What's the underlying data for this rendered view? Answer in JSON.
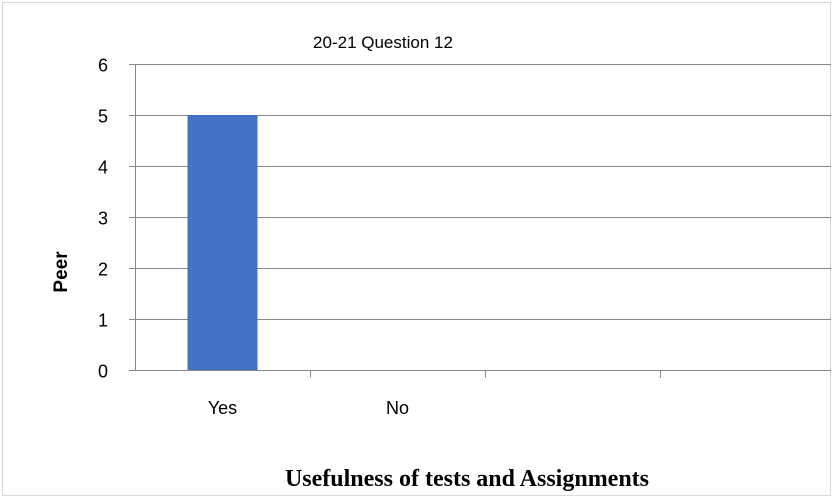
{
  "chart_data": {
    "type": "bar",
    "title": "20-21 Question 12",
    "xlabel": "Usefulness of tests and Assignments",
    "ylabel": "Peer",
    "categories": [
      "Yes",
      "No",
      "",
      ""
    ],
    "values": [
      5,
      0,
      null,
      null
    ],
    "ylim": [
      0,
      6
    ],
    "yticks": [
      0,
      1,
      2,
      3,
      4,
      5,
      6
    ],
    "grid": true,
    "legend": "none",
    "bar_color": "#4472c4",
    "grid_color": "#868686",
    "axis_color": "#868686"
  }
}
